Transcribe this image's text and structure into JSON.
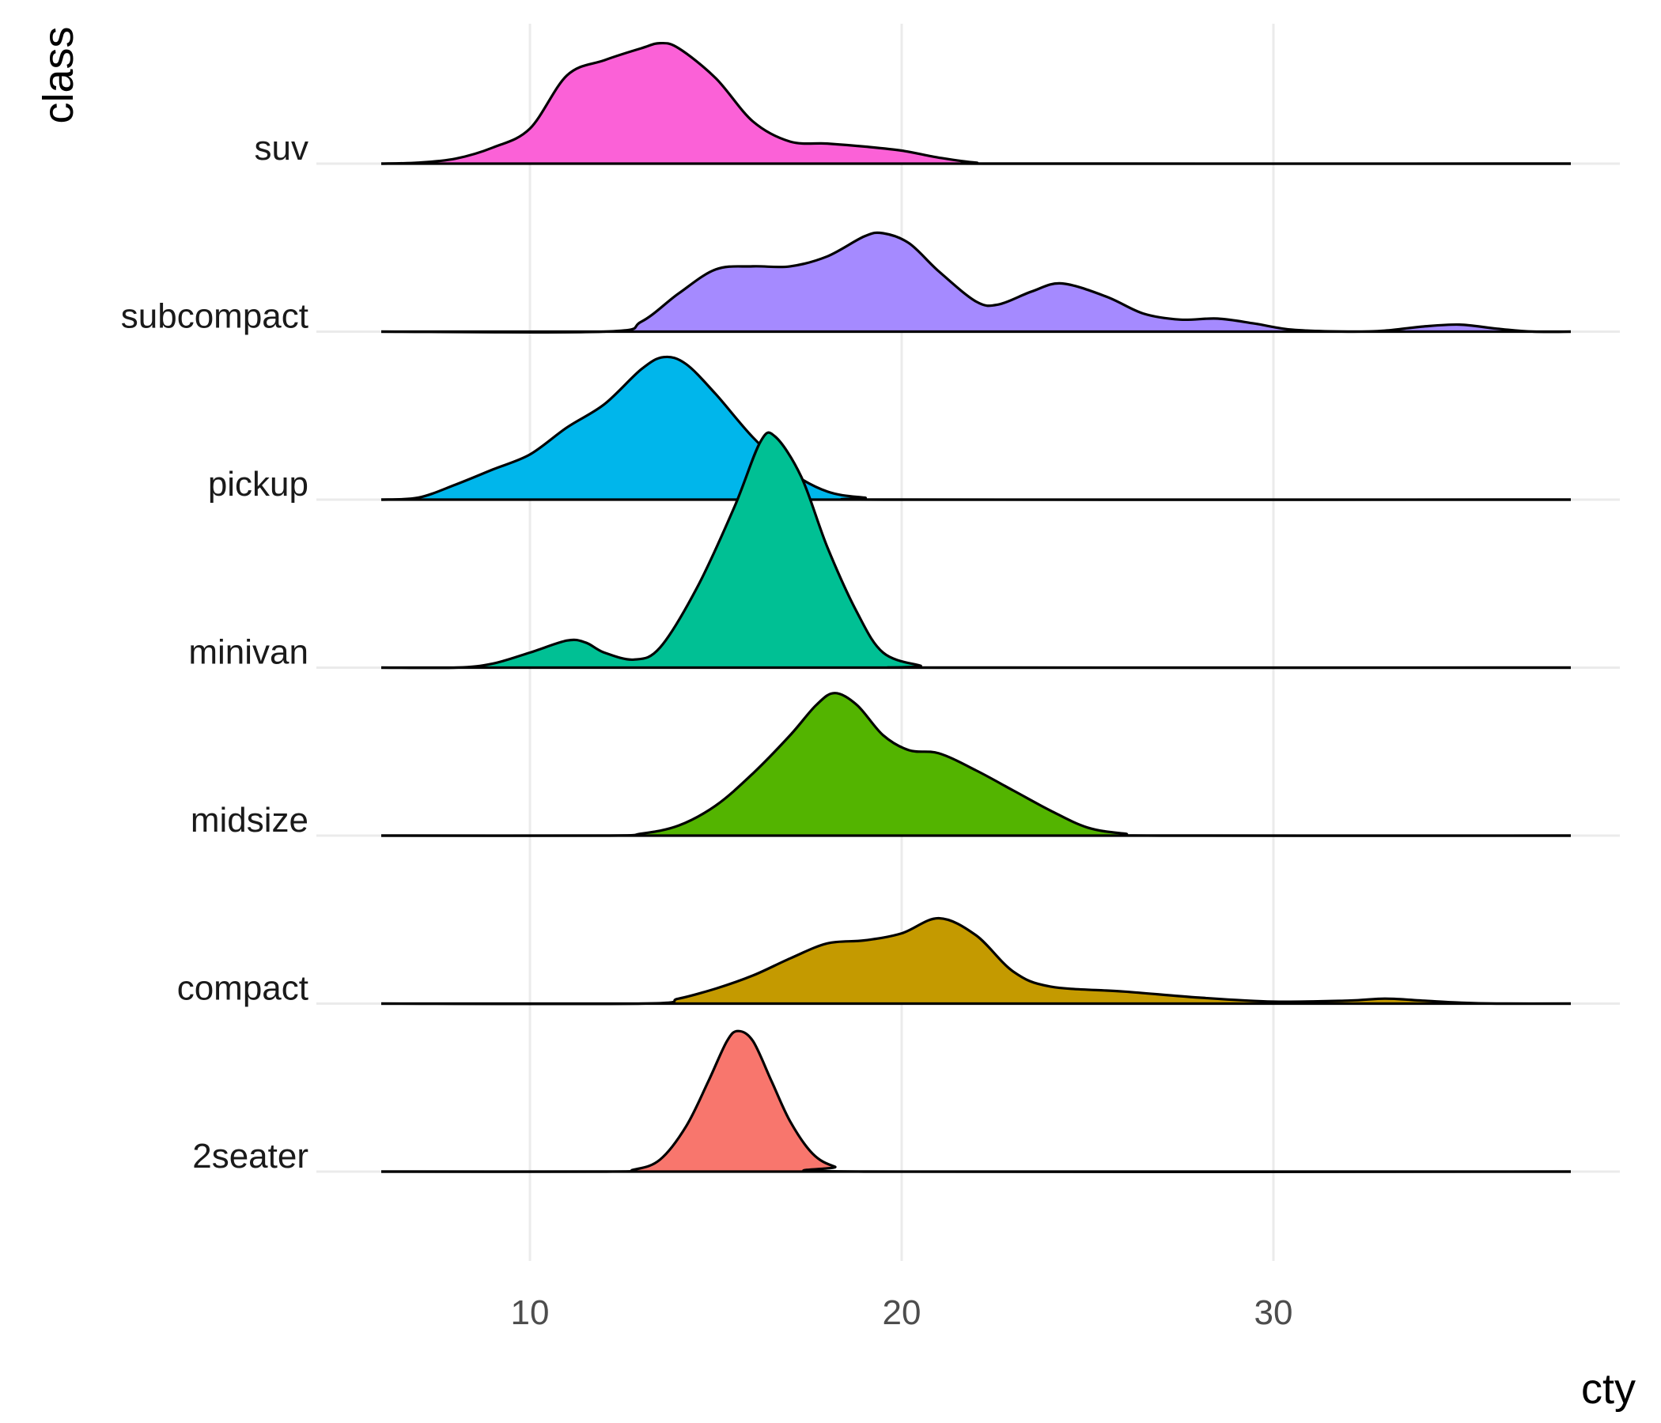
{
  "chart_data": {
    "type": "area",
    "subtype": "ridgeline-density",
    "xlabel": "cty",
    "ylabel": "class",
    "xlim": [
      6,
      38
    ],
    "x_ticks": [
      10,
      20,
      30
    ],
    "grid": "vertical and horizontal major gridlines",
    "legend": "none",
    "categories": [
      "2seater",
      "compact",
      "midsize",
      "minivan",
      "pickup",
      "subcompact",
      "suv"
    ],
    "series": [
      {
        "name": "2seater",
        "color": "#F8766D",
        "density": [
          [
            6,
            0
          ],
          [
            12,
            0
          ],
          [
            12.8,
            0.02
          ],
          [
            13.5,
            0.12
          ],
          [
            14.2,
            0.45
          ],
          [
            14.8,
            0.9
          ],
          [
            15.3,
            1.3
          ],
          [
            15.6,
            1.4
          ],
          [
            16.0,
            1.3
          ],
          [
            16.5,
            0.9
          ],
          [
            17.0,
            0.5
          ],
          [
            17.6,
            0.18
          ],
          [
            18.2,
            0.05
          ],
          [
            19,
            0
          ],
          [
            38,
            0
          ]
        ]
      },
      {
        "name": "compact",
        "color": "#C49A00",
        "density": [
          [
            6,
            0
          ],
          [
            13,
            0
          ],
          [
            14,
            0.05
          ],
          [
            15,
            0.15
          ],
          [
            16,
            0.28
          ],
          [
            17,
            0.45
          ],
          [
            18,
            0.6
          ],
          [
            19,
            0.63
          ],
          [
            20,
            0.7
          ],
          [
            21,
            0.85
          ],
          [
            22,
            0.68
          ],
          [
            23,
            0.32
          ],
          [
            24,
            0.17
          ],
          [
            26,
            0.12
          ],
          [
            28,
            0.06
          ],
          [
            30,
            0.02
          ],
          [
            32,
            0.03
          ],
          [
            33,
            0.05
          ],
          [
            34,
            0.03
          ],
          [
            35,
            0.01
          ],
          [
            36,
            0
          ],
          [
            38,
            0
          ]
        ]
      },
      {
        "name": "midsize",
        "color": "#53B400",
        "density": [
          [
            6,
            0
          ],
          [
            12,
            0
          ],
          [
            13,
            0.02
          ],
          [
            14,
            0.1
          ],
          [
            15,
            0.3
          ],
          [
            16,
            0.62
          ],
          [
            17,
            1.0
          ],
          [
            17.7,
            1.3
          ],
          [
            18.2,
            1.42
          ],
          [
            18.8,
            1.3
          ],
          [
            19.5,
            1.0
          ],
          [
            20.2,
            0.85
          ],
          [
            21,
            0.82
          ],
          [
            22,
            0.65
          ],
          [
            23,
            0.45
          ],
          [
            24,
            0.25
          ],
          [
            25,
            0.08
          ],
          [
            26,
            0.02
          ],
          [
            27,
            0
          ],
          [
            38,
            0
          ]
        ]
      },
      {
        "name": "minivan",
        "color": "#00C094",
        "density": [
          [
            6,
            0
          ],
          [
            8,
            0
          ],
          [
            9,
            0.04
          ],
          [
            10,
            0.15
          ],
          [
            11,
            0.27
          ],
          [
            11.5,
            0.25
          ],
          [
            12,
            0.15
          ],
          [
            12.8,
            0.08
          ],
          [
            13.5,
            0.2
          ],
          [
            14.5,
            0.8
          ],
          [
            15.5,
            1.6
          ],
          [
            16.2,
            2.25
          ],
          [
            16.6,
            2.3
          ],
          [
            17.3,
            1.9
          ],
          [
            18.0,
            1.2
          ],
          [
            18.8,
            0.55
          ],
          [
            19.5,
            0.15
          ],
          [
            20.5,
            0.02
          ],
          [
            21,
            0
          ],
          [
            38,
            0
          ]
        ]
      },
      {
        "name": "pickup",
        "color": "#00B6EB",
        "density": [
          [
            6,
            0
          ],
          [
            7,
            0.02
          ],
          [
            8,
            0.15
          ],
          [
            9,
            0.3
          ],
          [
            10,
            0.45
          ],
          [
            11,
            0.72
          ],
          [
            12,
            0.95
          ],
          [
            13,
            1.3
          ],
          [
            13.6,
            1.42
          ],
          [
            14.2,
            1.35
          ],
          [
            15,
            1.05
          ],
          [
            16,
            0.62
          ],
          [
            17,
            0.28
          ],
          [
            18,
            0.08
          ],
          [
            19,
            0.02
          ],
          [
            20,
            0
          ],
          [
            38,
            0
          ]
        ]
      },
      {
        "name": "subcompact",
        "color": "#A58AFF",
        "density": [
          [
            6,
            0
          ],
          [
            12,
            0
          ],
          [
            13,
            0.1
          ],
          [
            14,
            0.38
          ],
          [
            15,
            0.62
          ],
          [
            16,
            0.65
          ],
          [
            17,
            0.65
          ],
          [
            18,
            0.75
          ],
          [
            19,
            0.95
          ],
          [
            19.5,
            0.98
          ],
          [
            20.2,
            0.88
          ],
          [
            21,
            0.6
          ],
          [
            22,
            0.3
          ],
          [
            22.6,
            0.27
          ],
          [
            23.5,
            0.4
          ],
          [
            24.3,
            0.48
          ],
          [
            25.5,
            0.35
          ],
          [
            26.5,
            0.18
          ],
          [
            27.5,
            0.12
          ],
          [
            28.5,
            0.13
          ],
          [
            29.5,
            0.08
          ],
          [
            30.5,
            0.02
          ],
          [
            32,
            0
          ],
          [
            33,
            0.01
          ],
          [
            34,
            0.05
          ],
          [
            35,
            0.07
          ],
          [
            36,
            0.03
          ],
          [
            37,
            0
          ],
          [
            38,
            0
          ]
        ]
      },
      {
        "name": "suv",
        "color": "#FB61D7",
        "density": [
          [
            6,
            0
          ],
          [
            7,
            0.01
          ],
          [
            8,
            0.05
          ],
          [
            9,
            0.16
          ],
          [
            10,
            0.35
          ],
          [
            11,
            0.88
          ],
          [
            12,
            1.03
          ],
          [
            13,
            1.15
          ],
          [
            13.5,
            1.2
          ],
          [
            14,
            1.15
          ],
          [
            15,
            0.85
          ],
          [
            16,
            0.42
          ],
          [
            17,
            0.22
          ],
          [
            18,
            0.2
          ],
          [
            19,
            0.17
          ],
          [
            20,
            0.13
          ],
          [
            21,
            0.06
          ],
          [
            22,
            0.01
          ],
          [
            23,
            0
          ],
          [
            38,
            0
          ]
        ]
      }
    ]
  }
}
